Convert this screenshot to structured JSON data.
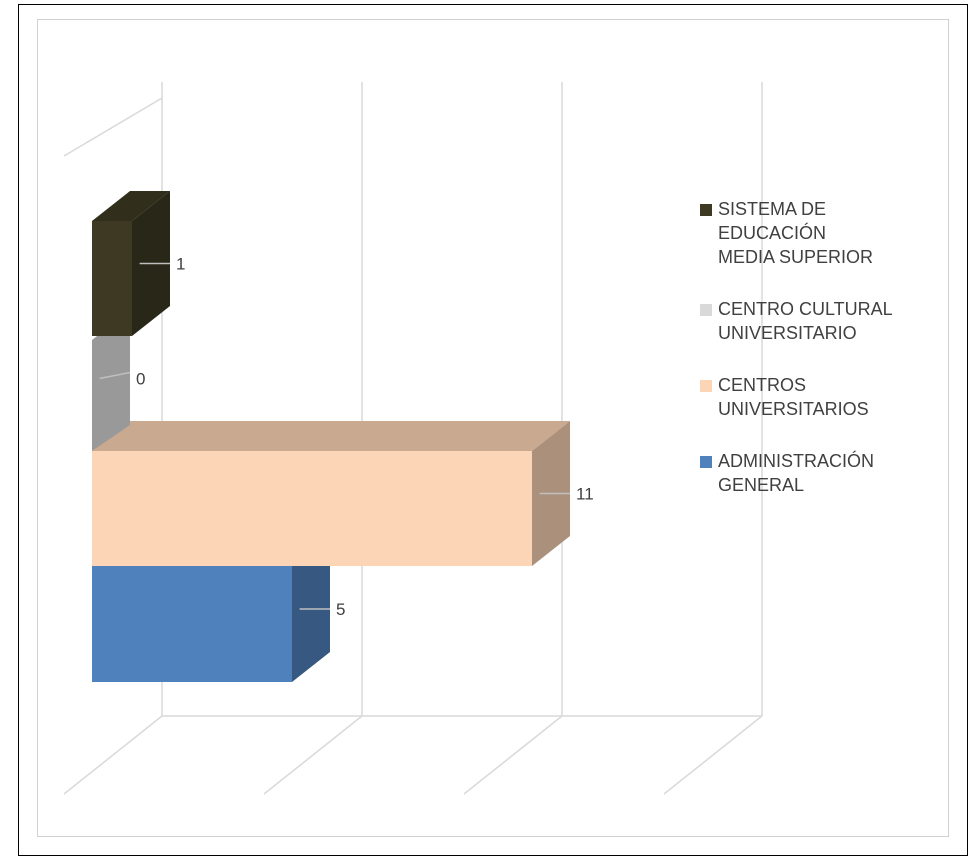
{
  "chart_data": {
    "type": "bar",
    "orientation": "horizontal",
    "style": "3d",
    "categories": [
      "ADMINISTRACIÓN GENERAL",
      "CENTROS UNIVERSITARIOS",
      "CENTRO CULTURAL UNIVERSITARIO",
      "SISTEMA DE EDUCACIÓN MEDIA SUPERIOR"
    ],
    "values": [
      5,
      11,
      0,
      1
    ],
    "colors": [
      "#4f81bd",
      "#fbd5b5",
      "#d9d9d9",
      "#3d3922"
    ],
    "xlim": [
      0,
      15
    ],
    "grid": true,
    "legend_position": "right",
    "title": "",
    "xlabel": "",
    "ylabel": ""
  },
  "legend": [
    {
      "label": "SISTEMA DE\nEDUCACIÓN\nMEDIA SUPERIOR",
      "color": "#3d3922"
    },
    {
      "label": "CENTRO CULTURAL\nUNIVERSITARIO",
      "color": "#d9d9d9"
    },
    {
      "label": "CENTROS\nUNIVERSITARIOS",
      "color": "#fbd5b5"
    },
    {
      "label": "ADMINISTRACIÓN\nGENERAL",
      "color": "#4f81bd"
    }
  ]
}
